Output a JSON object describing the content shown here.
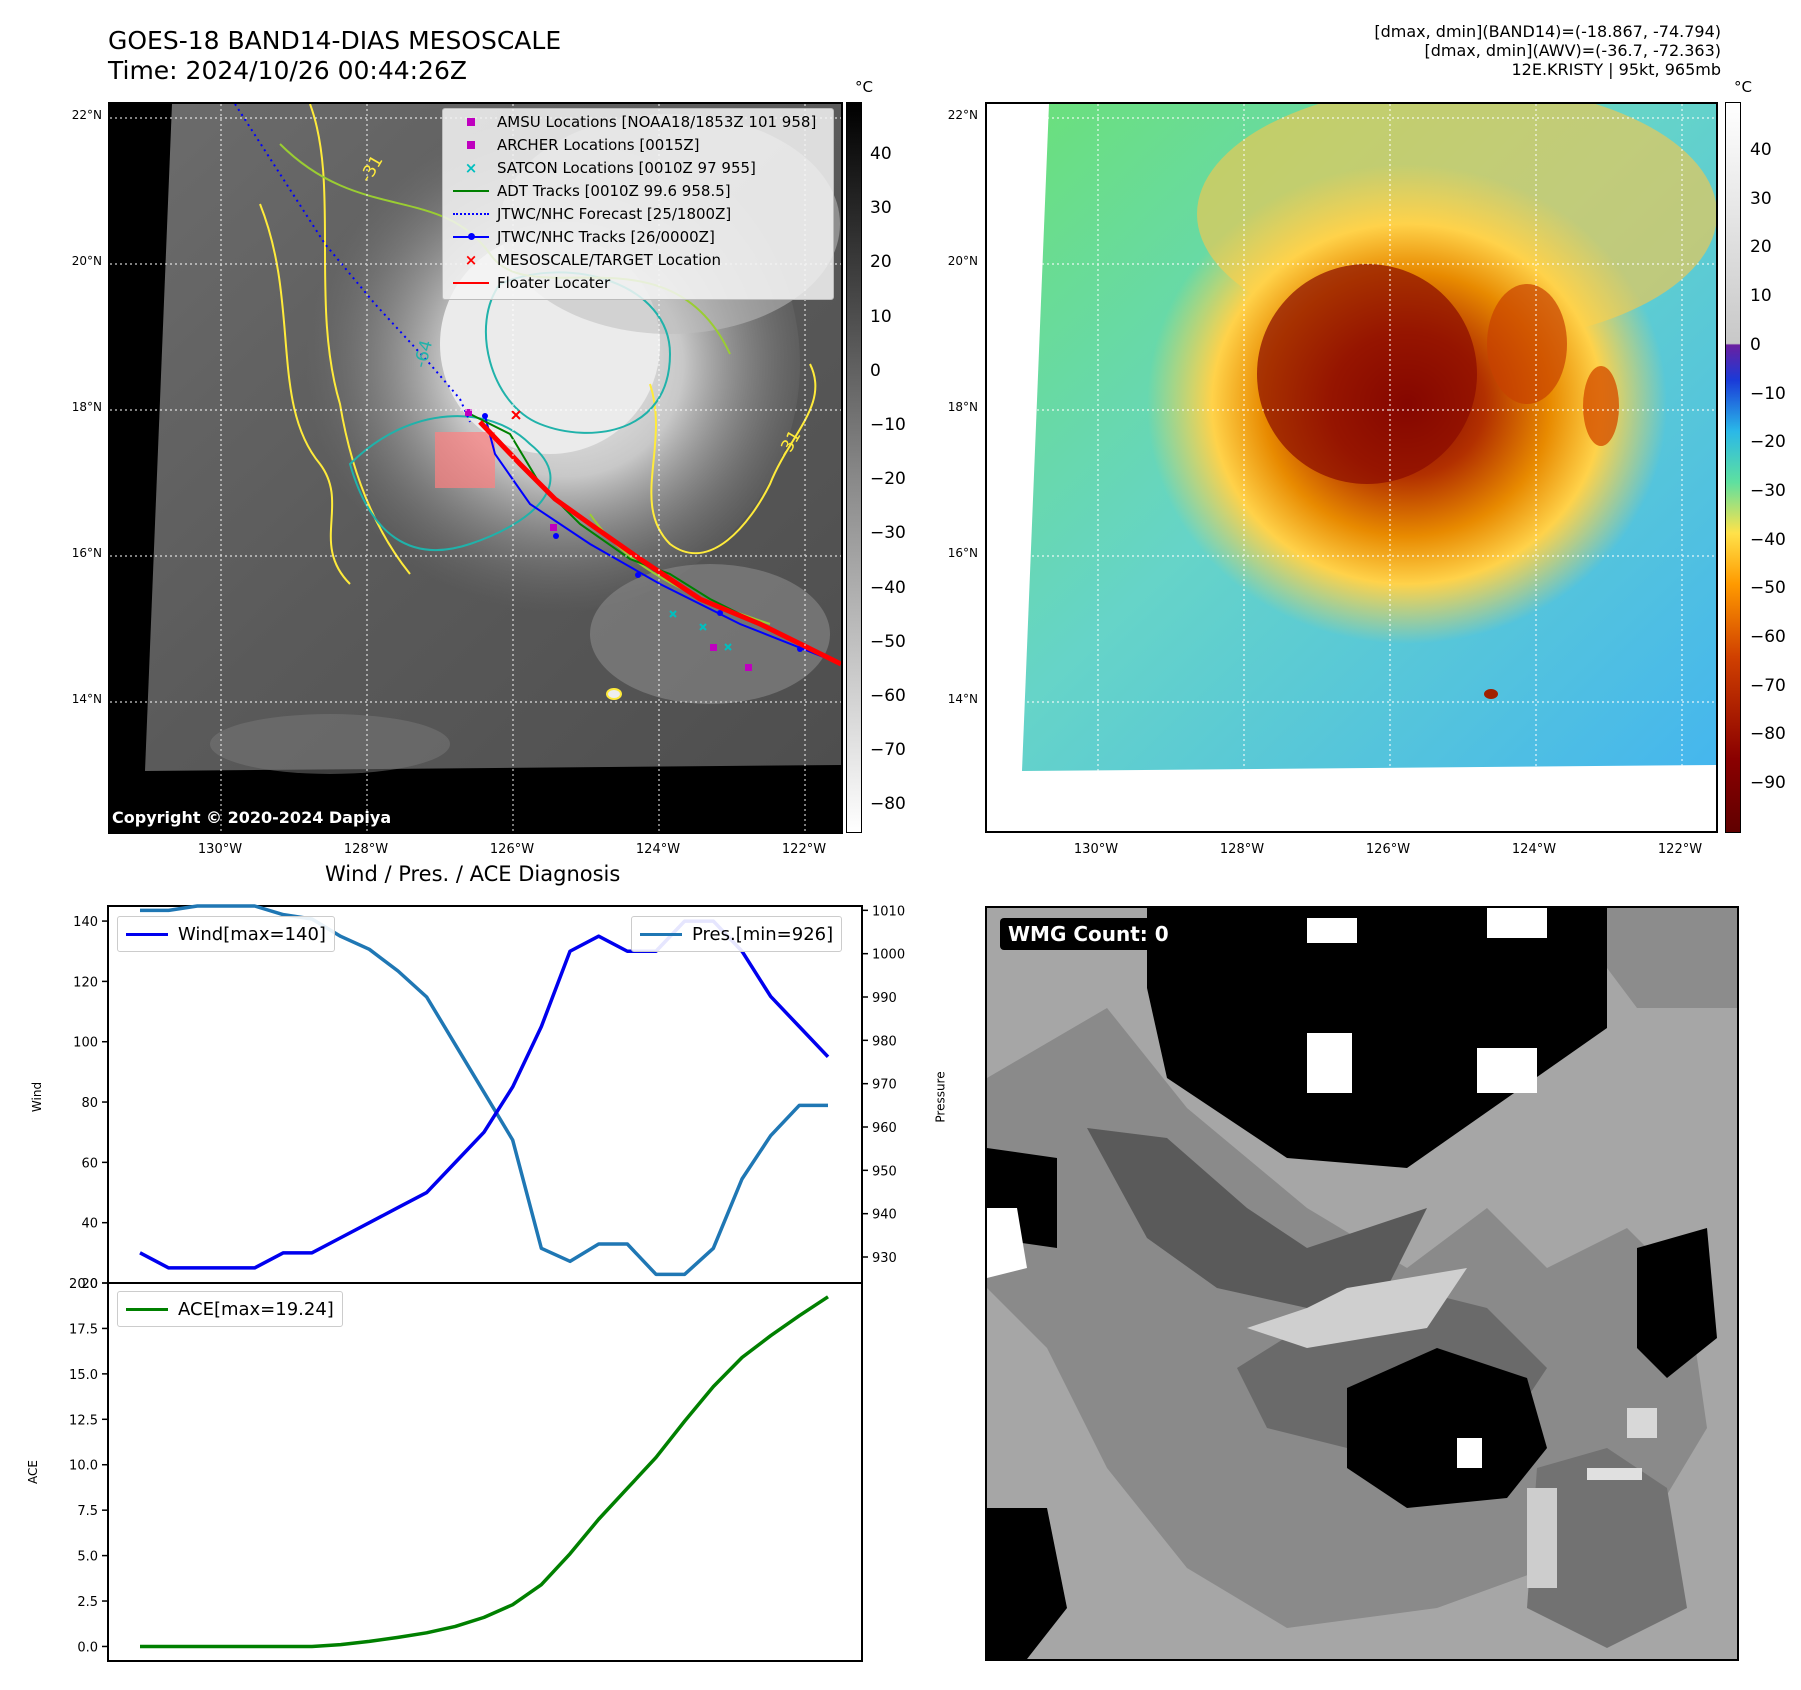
{
  "header": {
    "title_line1": "GOES-18 BAND14-DIAS MESOSCALE",
    "title_line2": "Time: 2024/10/26 00:44:26Z",
    "stats_line1": "[dmax, dmin](BAND14)=(-18.867, -74.794)",
    "stats_line2": "[dmax, dmin](AWV)=(-36.7, -72.363)",
    "stats_line3": "12E.KRISTY | 95kt, 965mb"
  },
  "map": {
    "lat_labels": [
      "22°N",
      "20°N",
      "18°N",
      "16°N",
      "14°N"
    ],
    "lon_labels": [
      "130°W",
      "128°W",
      "126°W",
      "124°W",
      "122°W"
    ],
    "copyright": "Copyright © 2020-2024 Dapiya",
    "contour_labels": [
      "-64",
      "-31",
      "-31"
    ],
    "legend": [
      {
        "label": "AMSU Locations [NOAA18/1853Z 101 958]",
        "icon": "square-marker",
        "color": "#bf00bf"
      },
      {
        "label": "ARCHER Locations [0015Z]",
        "icon": "square-marker",
        "color": "#bf00bf"
      },
      {
        "label": "SATCON Locations [0010Z 97 955]",
        "icon": "x-marker",
        "color": "#00bfbf"
      },
      {
        "label": "ADT Tracks [0010Z 99.6 958.5]",
        "icon": "solid-line",
        "color": "#008000"
      },
      {
        "label": "JTWC/NHC Forecast [25/1800Z]",
        "icon": "dotted-line",
        "color": "#0000ff"
      },
      {
        "label": "JTWC/NHC Tracks [26/0000Z]",
        "icon": "line-dot",
        "color": "#0000ff"
      },
      {
        "label": "MESOSCALE/TARGET Location",
        "icon": "x-marker",
        "color": "#ff0000"
      },
      {
        "label": "Floater Locater",
        "icon": "solid-line",
        "color": "#ff0000"
      }
    ]
  },
  "colorbar_gray": {
    "unit": "°C",
    "ticks": [
      "40",
      "30",
      "20",
      "10",
      "0",
      "−10",
      "−20",
      "−30",
      "−40",
      "−50",
      "−60",
      "−70",
      "−80"
    ]
  },
  "colorbar_color": {
    "unit": "°C",
    "ticks": [
      "40",
      "30",
      "20",
      "10",
      "0",
      "−10",
      "−20",
      "−30",
      "−40",
      "−50",
      "−60",
      "−70",
      "−80",
      "−90"
    ]
  },
  "wmg": {
    "badge": "WMG Count: 0"
  },
  "chart_data": [
    {
      "type": "line",
      "title": "Wind / Pres. / ACE Diagnosis",
      "ylabel": "Wind",
      "ylabel_right": "Pressure",
      "ylim": [
        20,
        145
      ],
      "ylim_right": [
        924,
        1011
      ],
      "yticks": [
        "140",
        "120",
        "100",
        "80",
        "60",
        "40",
        "20"
      ],
      "yticks_right": [
        "1010",
        "1000",
        "990",
        "980",
        "970",
        "960",
        "950",
        "940",
        "930"
      ],
      "x": [
        0,
        1,
        2,
        3,
        4,
        5,
        6,
        7,
        8,
        9,
        10,
        11,
        12,
        13,
        14,
        15,
        16,
        17,
        18,
        19,
        20,
        21,
        22,
        23,
        24
      ],
      "series": [
        {
          "name": "Wind[max=140]",
          "axis": "left",
          "color": "#0000ee",
          "values": [
            30,
            25,
            25,
            25,
            25,
            30,
            30,
            35,
            40,
            45,
            50,
            60,
            70,
            85,
            105,
            130,
            135,
            130,
            130,
            140,
            140,
            130,
            115,
            105,
            95
          ]
        },
        {
          "name": "Pres.[min=926]",
          "axis": "right",
          "color": "#1f77b4",
          "values": [
            1010,
            1010,
            1011,
            1011,
            1011,
            1009,
            1008,
            1004,
            1001,
            996,
            990,
            979,
            968,
            957,
            932,
            929,
            933,
            933,
            926,
            926,
            932,
            948,
            958,
            965,
            965
          ]
        }
      ]
    },
    {
      "type": "line",
      "ylabel": "ACE",
      "ylim": [
        -0.8,
        20
      ],
      "yticks": [
        "20.0",
        "17.5",
        "15.0",
        "12.5",
        "10.0",
        "7.5",
        "5.0",
        "2.5",
        "0.0"
      ],
      "x": [
        0,
        1,
        2,
        3,
        4,
        5,
        6,
        7,
        8,
        9,
        10,
        11,
        12,
        13,
        14,
        15,
        16,
        17,
        18,
        19,
        20,
        21,
        22,
        23,
        24
      ],
      "series": [
        {
          "name": "ACE[max=19.24]",
          "color": "#008000",
          "values": [
            0,
            0,
            0,
            0,
            0,
            0,
            0,
            0.1,
            0.28,
            0.5,
            0.75,
            1.1,
            1.6,
            2.3,
            3.4,
            5.1,
            7.0,
            8.7,
            10.4,
            12.4,
            14.3,
            15.9,
            17.1,
            18.2,
            19.24
          ]
        }
      ]
    }
  ]
}
